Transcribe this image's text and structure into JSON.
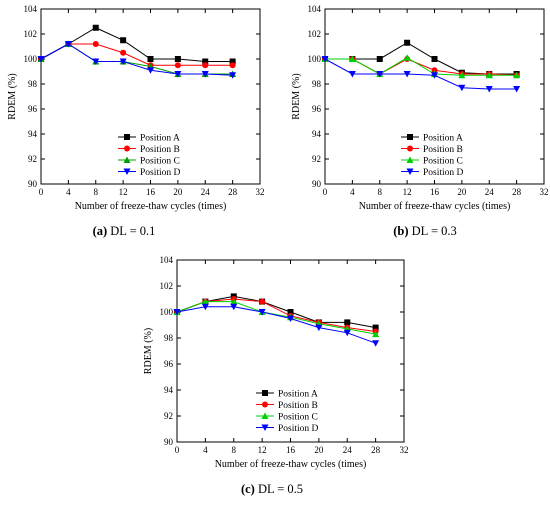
{
  "chart_data": [
    {
      "type": "line",
      "caption_letter": "(a)",
      "caption_text": " DL = 0.1",
      "xlabel": "Number of freeze-thaw cycles (times)",
      "ylabel": "RDEM (%)",
      "xlim": [
        0,
        32
      ],
      "ylim": [
        90,
        104
      ],
      "xticks": [
        0,
        4,
        8,
        12,
        16,
        20,
        24,
        28,
        32
      ],
      "yticks": [
        90,
        92,
        94,
        96,
        98,
        100,
        102,
        104
      ],
      "grid": false,
      "legend_position": "bottom-center",
      "x": [
        0,
        4,
        8,
        12,
        16,
        20,
        24,
        28
      ],
      "series": [
        {
          "name": "Position A",
          "color": "#000000",
          "marker": "square",
          "values": [
            100,
            101.2,
            102.5,
            101.5,
            100.0,
            100.0,
            99.8,
            99.8
          ]
        },
        {
          "name": "Position B",
          "color": "#ff0000",
          "marker": "circle",
          "values": [
            100,
            101.2,
            101.2,
            100.5,
            99.5,
            99.5,
            99.5,
            99.5
          ]
        },
        {
          "name": "Position C",
          "color": "#00a000",
          "marker": "triangle-up",
          "values": [
            100,
            101.2,
            99.8,
            99.8,
            99.4,
            98.8,
            98.8,
            98.8
          ]
        },
        {
          "name": "Position D",
          "color": "#0000ff",
          "marker": "triangle-down",
          "values": [
            100,
            101.2,
            99.8,
            99.8,
            99.1,
            98.8,
            98.8,
            98.7
          ]
        }
      ]
    },
    {
      "type": "line",
      "caption_letter": "(b)",
      "caption_text": " DL = 0.3",
      "xlabel": "Number of freeze-thaw cycles (times)",
      "ylabel": "RDEM (%)",
      "xlim": [
        0,
        32
      ],
      "ylim": [
        90,
        104
      ],
      "xticks": [
        0,
        4,
        8,
        12,
        16,
        20,
        24,
        28,
        32
      ],
      "yticks": [
        90,
        92,
        94,
        96,
        98,
        100,
        102,
        104
      ],
      "grid": false,
      "legend_position": "bottom-center",
      "x": [
        0,
        4,
        8,
        12,
        16,
        20,
        24,
        28
      ],
      "series": [
        {
          "name": "Position A",
          "color": "#000000",
          "marker": "square",
          "values": [
            100,
            100.0,
            100.0,
            101.3,
            100.0,
            98.9,
            98.8,
            98.8
          ]
        },
        {
          "name": "Position B",
          "color": "#ff0000",
          "marker": "circle",
          "values": [
            100,
            100.0,
            98.8,
            100.0,
            99.1,
            98.8,
            98.8,
            98.7
          ]
        },
        {
          "name": "Position C",
          "color": "#00d000",
          "marker": "triangle-up",
          "values": [
            100,
            100.0,
            98.8,
            100.1,
            98.8,
            98.7,
            98.7,
            98.7
          ]
        },
        {
          "name": "Position D",
          "color": "#0000ff",
          "marker": "triangle-down",
          "values": [
            100,
            98.8,
            98.8,
            98.8,
            98.7,
            97.7,
            97.6,
            97.6
          ]
        }
      ]
    },
    {
      "type": "line",
      "caption_letter": "(c)",
      "caption_text": " DL = 0.5",
      "xlabel": "Number of freeze-thaw cycles (times)",
      "ylabel": "RDEM (%)",
      "xlim": [
        0,
        32
      ],
      "ylim": [
        90,
        104
      ],
      "xticks": [
        0,
        4,
        8,
        12,
        16,
        20,
        24,
        28,
        32
      ],
      "yticks": [
        90,
        92,
        94,
        96,
        98,
        100,
        102,
        104
      ],
      "grid": false,
      "legend_position": "bottom-center",
      "x": [
        0,
        4,
        8,
        12,
        16,
        20,
        24,
        28
      ],
      "series": [
        {
          "name": "Position A",
          "color": "#000000",
          "marker": "square",
          "values": [
            100,
            100.8,
            101.2,
            100.8,
            100.0,
            99.2,
            99.2,
            98.8
          ]
        },
        {
          "name": "Position B",
          "color": "#ff0000",
          "marker": "circle",
          "values": [
            100,
            100.8,
            101.0,
            100.8,
            99.7,
            99.2,
            98.8,
            98.5
          ]
        },
        {
          "name": "Position C",
          "color": "#00d000",
          "marker": "triangle-up",
          "values": [
            100,
            100.8,
            100.8,
            100.0,
            99.6,
            99.1,
            98.7,
            98.3
          ]
        },
        {
          "name": "Position D",
          "color": "#0000ff",
          "marker": "triangle-down",
          "values": [
            100,
            100.4,
            100.4,
            100.0,
            99.5,
            98.8,
            98.4,
            97.6
          ]
        }
      ]
    }
  ]
}
